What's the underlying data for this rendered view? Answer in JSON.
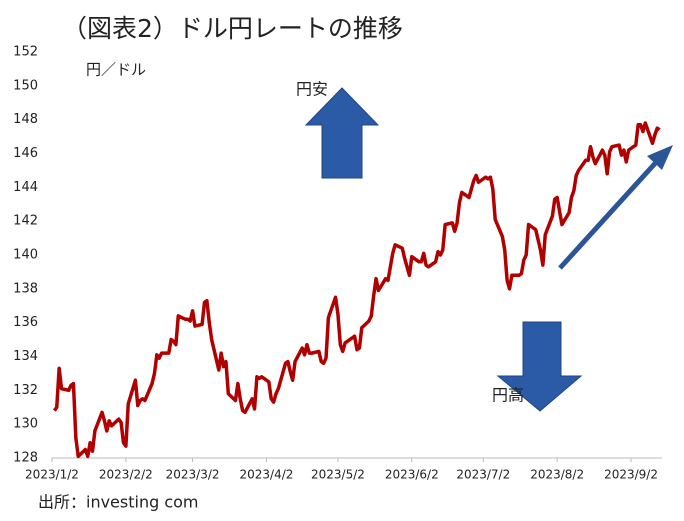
{
  "chart_data": {
    "type": "line",
    "title": "（図表2）ドル円レートの推移",
    "y_label": "円／ドル",
    "annotations": [
      "円安",
      "円高"
    ],
    "source": "出所：investing com",
    "x": [
      "2023/1/3",
      "2023/1/4",
      "2023/1/5",
      "2023/1/6",
      "2023/1/9",
      "2023/1/10",
      "2023/1/11",
      "2023/1/12",
      "2023/1/13",
      "2023/1/16",
      "2023/1/17",
      "2023/1/18",
      "2023/1/19",
      "2023/1/20",
      "2023/1/23",
      "2023/1/24",
      "2023/1/25",
      "2023/1/26",
      "2023/1/27",
      "2023/1/30",
      "2023/1/31",
      "2023/2/1",
      "2023/2/2",
      "2023/2/3",
      "2023/2/6",
      "2023/2/7",
      "2023/2/8",
      "2023/2/9",
      "2023/2/10",
      "2023/2/13",
      "2023/2/14",
      "2023/2/15",
      "2023/2/16",
      "2023/2/17",
      "2023/2/20",
      "2023/2/21",
      "2023/2/22",
      "2023/2/23",
      "2023/2/24",
      "2023/2/27",
      "2023/2/28",
      "2023/3/1",
      "2023/3/2",
      "2023/3/3",
      "2023/3/6",
      "2023/3/7",
      "2023/3/8",
      "2023/3/9",
      "2023/3/10",
      "2023/3/13",
      "2023/3/14",
      "2023/3/15",
      "2023/3/16",
      "2023/3/17",
      "2023/3/20",
      "2023/3/21",
      "2023/3/22",
      "2023/3/23",
      "2023/3/24",
      "2023/3/27",
      "2023/3/28",
      "2023/3/29",
      "2023/3/30",
      "2023/3/31",
      "2023/4/3",
      "2023/4/4",
      "2023/4/5",
      "2023/4/6",
      "2023/4/7",
      "2023/4/10",
      "2023/4/11",
      "2023/4/12",
      "2023/4/13",
      "2023/4/14",
      "2023/4/17",
      "2023/4/18",
      "2023/4/19",
      "2023/4/20",
      "2023/4/21",
      "2023/4/24",
      "2023/4/25",
      "2023/4/26",
      "2023/4/27",
      "2023/4/28",
      "2023/5/1",
      "2023/5/2",
      "2023/5/3",
      "2023/5/4",
      "2023/5/5",
      "2023/5/8",
      "2023/5/9",
      "2023/5/10",
      "2023/5/11",
      "2023/5/12",
      "2023/5/15",
      "2023/5/16",
      "2023/5/17",
      "2023/5/18",
      "2023/5/19",
      "2023/5/22",
      "2023/5/23",
      "2023/5/24",
      "2023/5/25",
      "2023/5/26",
      "2023/5/29",
      "2023/5/30",
      "2023/5/31",
      "2023/6/1",
      "2023/6/2",
      "2023/6/5",
      "2023/6/6",
      "2023/6/7",
      "2023/6/8",
      "2023/6/9",
      "2023/6/12",
      "2023/6/13",
      "2023/6/14",
      "2023/6/15",
      "2023/6/16",
      "2023/6/19",
      "2023/6/20",
      "2023/6/21",
      "2023/6/22",
      "2023/6/23",
      "2023/6/26",
      "2023/6/27",
      "2023/6/28",
      "2023/6/29",
      "2023/6/30",
      "2023/7/3",
      "2023/7/4",
      "2023/7/5",
      "2023/7/6",
      "2023/7/7",
      "2023/7/10",
      "2023/7/11",
      "2023/7/12",
      "2023/7/13",
      "2023/7/14",
      "2023/7/17",
      "2023/7/18",
      "2023/7/19",
      "2023/7/20",
      "2023/7/21",
      "2023/7/24",
      "2023/7/25",
      "2023/7/26",
      "2023/7/27",
      "2023/7/28",
      "2023/7/31",
      "2023/8/1",
      "2023/8/2",
      "2023/8/3",
      "2023/8/4",
      "2023/8/7",
      "2023/8/8",
      "2023/8/9",
      "2023/8/10",
      "2023/8/11",
      "2023/8/14",
      "2023/8/15",
      "2023/8/16",
      "2023/8/17",
      "2023/8/18",
      "2023/8/21",
      "2023/8/22",
      "2023/8/23",
      "2023/8/24",
      "2023/8/25",
      "2023/8/28",
      "2023/8/29",
      "2023/8/30",
      "2023/8/31",
      "2023/9/1",
      "2023/9/4",
      "2023/9/5",
      "2023/9/6",
      "2023/9/7",
      "2023/9/8",
      "2023/9/11",
      "2023/9/12",
      "2023/9/13",
      "2023/9/14"
    ],
    "series": [
      {
        "name": "ドル円",
        "color": "#b00000",
        "values": [
          130.8,
          131.0,
          133.3,
          132.1,
          132.0,
          132.3,
          132.4,
          129.2,
          128.1,
          128.5,
          128.1,
          128.9,
          128.4,
          129.6,
          130.7,
          130.2,
          129.6,
          130.2,
          129.9,
          130.3,
          130.1,
          128.9,
          128.7,
          131.2,
          132.6,
          131.1,
          131.4,
          131.5,
          131.4,
          132.4,
          133.0,
          134.1,
          133.9,
          134.2,
          134.2,
          135.0,
          134.9,
          134.7,
          136.4,
          136.2,
          136.2,
          136.1,
          136.7,
          135.8,
          135.9,
          137.2,
          137.3,
          136.0,
          135.0,
          133.2,
          134.2,
          133.4,
          133.7,
          131.8,
          131.4,
          132.4,
          131.5,
          130.8,
          130.7,
          131.5,
          130.9,
          132.8,
          132.7,
          132.8,
          132.5,
          131.5,
          131.3,
          131.8,
          132.1,
          133.6,
          133.7,
          133.1,
          132.6,
          133.7,
          134.5,
          134.1,
          134.7,
          134.2,
          134.2,
          134.3,
          133.7,
          133.6,
          133.9,
          136.3,
          137.5,
          136.5,
          134.7,
          134.3,
          134.8,
          135.1,
          135.2,
          134.4,
          134.5,
          135.7,
          136.1,
          136.4,
          137.6,
          138.6,
          137.9,
          138.6,
          138.5,
          139.3,
          140.1,
          140.6,
          140.4,
          139.8,
          139.3,
          138.8,
          139.9,
          139.6,
          139.6,
          140.1,
          139.4,
          139.3,
          139.6,
          140.2,
          140.0,
          140.3,
          141.8,
          141.9,
          141.4,
          141.9,
          143.1,
          143.7,
          143.4,
          143.9,
          144.4,
          144.7,
          144.3,
          144.6,
          144.5,
          144.6,
          143.9,
          142.1,
          141.1,
          140.3,
          138.5,
          138.0,
          138.8,
          138.8,
          138.9,
          139.7,
          140.0,
          141.8,
          141.5,
          140.9,
          140.3,
          139.4,
          141.2,
          142.3,
          143.3,
          143.4,
          142.6,
          141.8,
          142.5,
          143.4,
          143.8,
          144.7,
          145.0,
          145.6,
          145.6,
          146.4,
          145.8,
          145.4,
          146.2,
          145.9,
          144.8,
          146.1,
          146.4,
          146.5,
          145.9,
          146.2,
          145.5,
          146.2,
          146.5,
          147.7,
          147.7,
          147.3,
          147.8,
          146.6,
          147.1,
          147.5,
          147.4
        ]
      }
    ],
    "xlim": [
      "2023/1/2",
      "2023/9/15"
    ],
    "xticks": [
      "2023/1/2",
      "2023/2/2",
      "2023/3/2",
      "2023/4/2",
      "2023/5/2",
      "2023/6/2",
      "2023/7/2",
      "2023/8/2",
      "2023/9/2"
    ],
    "ylim": [
      128,
      152
    ],
    "yticks": [
      128,
      130,
      132,
      134,
      136,
      138,
      140,
      142,
      144,
      146,
      148,
      150,
      152
    ],
    "grid": false
  }
}
